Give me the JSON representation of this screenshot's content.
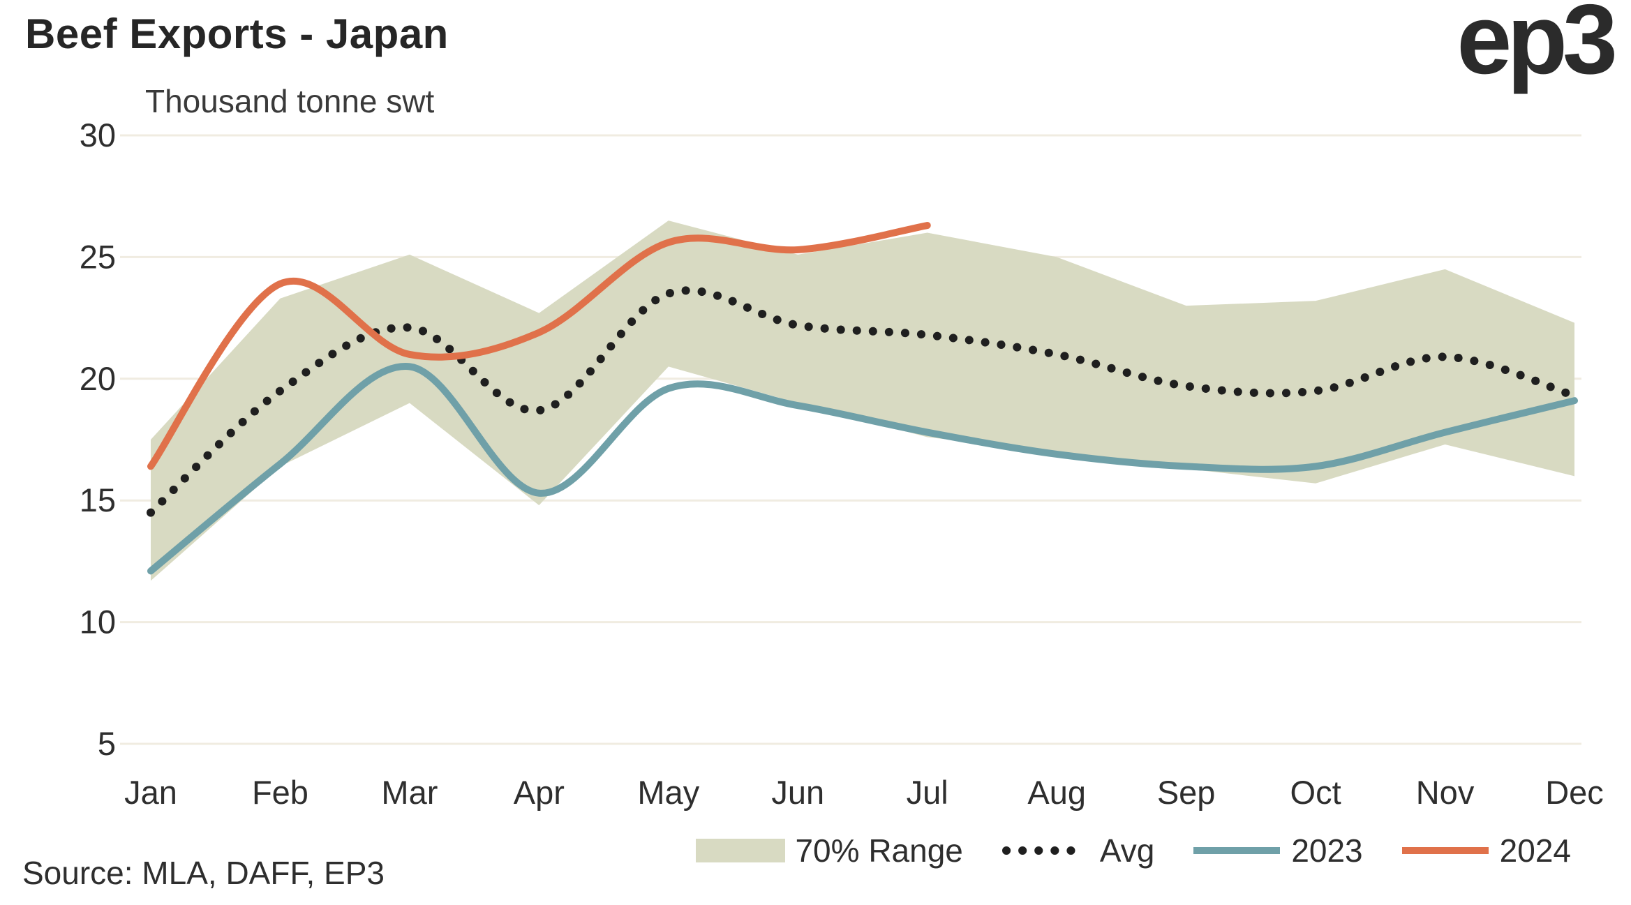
{
  "header": {
    "title": "Beef Exports - Japan",
    "subtitle": "Thousand tonne swt",
    "logo_text": "ep3"
  },
  "footer": {
    "source": "Source: MLA, DAFF, EP3"
  },
  "colors": {
    "band": "#d8dac2",
    "avg": "#1f1f1f",
    "line2023": "#6fa0a8",
    "line2024": "#e0714a",
    "grid": "#f0ece1",
    "text": "#2e2e2e"
  },
  "legend": {
    "position": "bottom-right",
    "items": [
      {
        "label": "70% Range",
        "type": "band"
      },
      {
        "label": "Avg",
        "type": "dotted-line"
      },
      {
        "label": "2023",
        "type": "line"
      },
      {
        "label": "2024",
        "type": "line"
      }
    ]
  },
  "chart_data": {
    "type": "line",
    "title": "Beef Exports - Japan",
    "ylabel": "Thousand tonne swt",
    "ylim": [
      5,
      30
    ],
    "yticks": [
      30,
      25,
      20,
      15,
      10,
      5
    ],
    "grid": "horizontal",
    "categories": [
      "Jan",
      "Feb",
      "Mar",
      "Apr",
      "May",
      "Jun",
      "Jul",
      "Aug",
      "Sep",
      "Oct",
      "Nov",
      "Dec"
    ],
    "range_70": {
      "name": "70% Range",
      "upper": [
        17.5,
        23.3,
        25.1,
        22.7,
        26.5,
        25.1,
        26.0,
        25.0,
        23.0,
        23.2,
        24.5,
        22.3
      ],
      "lower": [
        11.7,
        16.4,
        19.0,
        14.8,
        20.5,
        19.0,
        17.6,
        17.0,
        16.3,
        15.7,
        17.3,
        16.0
      ]
    },
    "series": [
      {
        "name": "Avg",
        "style": "dotted",
        "color": "#1f1f1f",
        "values": [
          14.5,
          19.5,
          22.1,
          18.7,
          23.5,
          22.2,
          21.8,
          21.0,
          19.7,
          19.5,
          20.9,
          19.3
        ]
      },
      {
        "name": "2023",
        "style": "solid",
        "color": "#6fa0a8",
        "values": [
          12.1,
          16.5,
          20.5,
          15.3,
          19.6,
          18.9,
          17.8,
          16.9,
          16.4,
          16.4,
          17.8,
          19.1
        ]
      },
      {
        "name": "2024",
        "style": "solid",
        "color": "#e0714a",
        "values": [
          16.4,
          23.9,
          21.0,
          21.9,
          25.6,
          25.3,
          26.3,
          null,
          null,
          null,
          null,
          null
        ]
      }
    ]
  }
}
